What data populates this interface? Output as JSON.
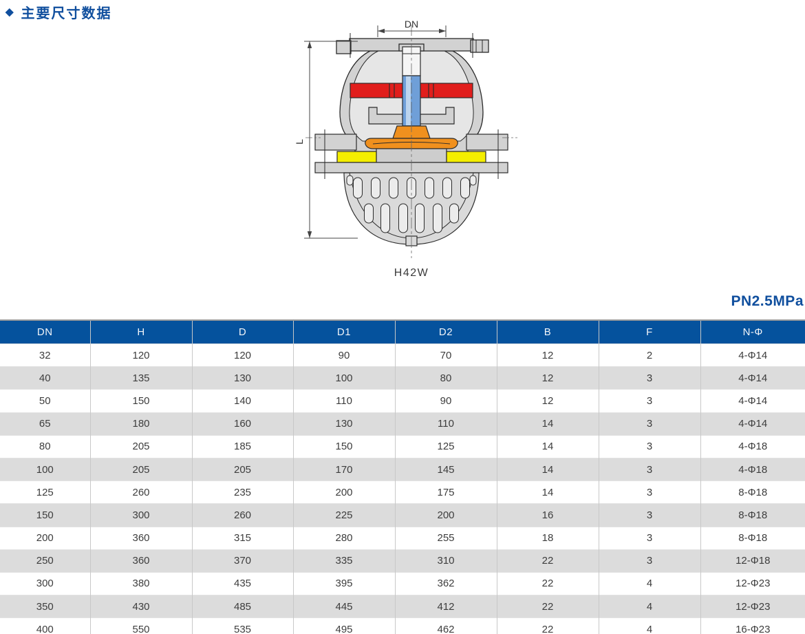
{
  "page": {
    "title": "主要尺寸数据",
    "title_bullet": "◆",
    "pressure_label": "PN2.5MPa",
    "accent_color": "#104f9e"
  },
  "drawing": {
    "model_label": "H42W",
    "dim_top": "DN",
    "dim_left": "L",
    "colors": {
      "body": "#d2d2d2",
      "cavity": "#e6e6e6",
      "band": "#e11e1c",
      "stem": "#6f9fd8",
      "stem_highlight": "#bdd5ee",
      "disc": "#f0901e",
      "seat": "#f4ee00",
      "strainer": "#dadada"
    }
  },
  "table": {
    "header_bg": "#05529d",
    "stripe_bg": "#dcdcdc",
    "columns": [
      "DN",
      "H",
      "D",
      "D1",
      "D2",
      "B",
      "F",
      "N-Φ"
    ],
    "rows": [
      [
        "32",
        "120",
        "120",
        "90",
        "70",
        "12",
        "2",
        "4-Φ14"
      ],
      [
        "40",
        "135",
        "130",
        "100",
        "80",
        "12",
        "3",
        "4-Φ14"
      ],
      [
        "50",
        "150",
        "140",
        "110",
        "90",
        "12",
        "3",
        "4-Φ14"
      ],
      [
        "65",
        "180",
        "160",
        "130",
        "110",
        "14",
        "3",
        "4-Φ14"
      ],
      [
        "80",
        "205",
        "185",
        "150",
        "125",
        "14",
        "3",
        "4-Φ18"
      ],
      [
        "100",
        "205",
        "205",
        "170",
        "145",
        "14",
        "3",
        "4-Φ18"
      ],
      [
        "125",
        "260",
        "235",
        "200",
        "175",
        "14",
        "3",
        "8-Φ18"
      ],
      [
        "150",
        "300",
        "260",
        "225",
        "200",
        "16",
        "3",
        "8-Φ18"
      ],
      [
        "200",
        "360",
        "315",
        "280",
        "255",
        "18",
        "3",
        "8-Φ18"
      ],
      [
        "250",
        "360",
        "370",
        "335",
        "310",
        "22",
        "3",
        "12-Φ18"
      ],
      [
        "300",
        "380",
        "435",
        "395",
        "362",
        "22",
        "4",
        "12-Φ23"
      ],
      [
        "350",
        "430",
        "485",
        "445",
        "412",
        "22",
        "4",
        "12-Φ23"
      ],
      [
        "400",
        "550",
        "535",
        "495",
        "462",
        "22",
        "4",
        "16-Φ23"
      ]
    ]
  }
}
